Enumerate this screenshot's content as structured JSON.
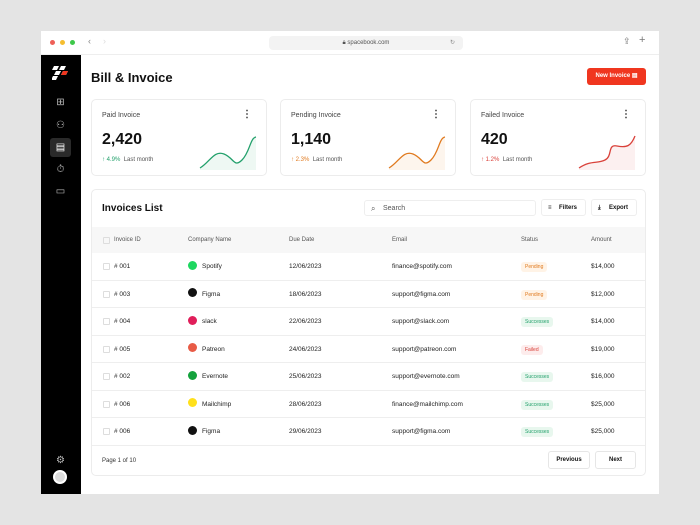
{
  "browser": {
    "url": "spacebook.com"
  },
  "page": {
    "title": "Bill & Invoice",
    "new_invoice_label": "New Invoice"
  },
  "cards": [
    {
      "title": "Paid Invoice",
      "value": "2,420",
      "change": "4.9%",
      "period": "Last month",
      "color": "#22a06b"
    },
    {
      "title": "Pending Invoice",
      "value": "1,140",
      "change": "2.3%",
      "period": "Last month",
      "color": "#e07a1f"
    },
    {
      "title": "Failed Invoice",
      "value": "420",
      "change": "1.2%",
      "period": "Last month",
      "color": "#d9413a"
    }
  ],
  "invoices": {
    "title": "Invoices List",
    "search_placeholder": "Search",
    "filters_label": "Filters",
    "export_label": "Export",
    "columns": [
      "Invoice ID",
      "Company Name",
      "Due Date",
      "Email",
      "Status",
      "Amount"
    ],
    "rows": [
      {
        "id": "# 001",
        "company": "Spotify",
        "date": "12/06/2023",
        "email": "finance@spotify.com",
        "status": "Pending",
        "amount": "$14,000",
        "logo": "#1ed760"
      },
      {
        "id": "# 003",
        "company": "Figma",
        "date": "18/06/2023",
        "email": "support@figma.com",
        "status": "Pending",
        "amount": "$12,000",
        "logo": "#111111"
      },
      {
        "id": "# 004",
        "company": "slack",
        "date": "22/06/2023",
        "email": "support@slack.com",
        "status": "Successes",
        "amount": "$14,000",
        "logo": "#e01e5a"
      },
      {
        "id": "# 005",
        "company": "Patreon",
        "date": "24/06/2023",
        "email": "support@patreon.com",
        "status": "Failed",
        "amount": "$19,000",
        "logo": "#e85b46"
      },
      {
        "id": "# 002",
        "company": "Evernote",
        "date": "25/06/2023",
        "email": "support@evernote.com",
        "status": "Successes",
        "amount": "$16,000",
        "logo": "#14a23c"
      },
      {
        "id": "# 006",
        "company": "Mailchimp",
        "date": "28/06/2023",
        "email": "finance@mailchimp.com",
        "status": "Successes",
        "amount": "$25,000",
        "logo": "#ffe01b"
      },
      {
        "id": "# 006",
        "company": "Figma",
        "date": "29/06/2023",
        "email": "support@figma.com",
        "status": "Successes",
        "amount": "$25,000",
        "logo": "#111111"
      }
    ],
    "page_info": "Page 1 of 10",
    "previous_label": "Previous",
    "next_label": "Next"
  },
  "status_colors": {
    "Pending": [
      "#fff3e6",
      "#e07a1f"
    ],
    "Successes": [
      "#e8f7ee",
      "#22a06b"
    ],
    "Failed": [
      "#fdecec",
      "#d9413a"
    ]
  }
}
